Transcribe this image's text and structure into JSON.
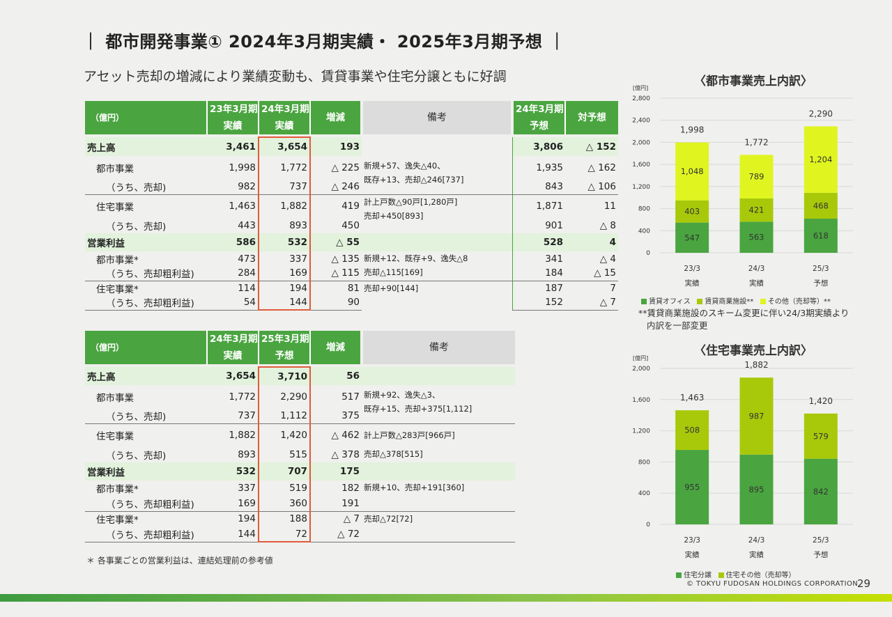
{
  "title": "｜ 都市開発事業① 2024年3月期実績・ 2025年3月期予想 ｜",
  "subtitle": "アセット売却の増減により業績変動も、賃貸事業や住宅分譲ともに好調",
  "table1": {
    "headers": {
      "unit": "（億円）",
      "c1a": "23年3月期",
      "c1b": "実績",
      "c2a": "24年3月期",
      "c2b": "実績",
      "c3": "増減",
      "note": "備考",
      "c4a": "24年3月期",
      "c4b": "予想",
      "c5": "対予想"
    },
    "rows": [
      {
        "label": "売上高",
        "v1": "3,461",
        "v2": "3,654",
        "v3": "193",
        "v4": "3,806",
        "v5": "△ 152"
      },
      {
        "label": "都市事業",
        "v1": "1,998",
        "v2": "1,772",
        "v3": "△ 225",
        "v4": "1,935",
        "v5": "△ 162"
      },
      {
        "label": "（うち、売却)",
        "v1": "982",
        "v2": "737",
        "v3": "△ 246",
        "v4": "843",
        "v5": "△ 106"
      },
      {
        "label": "住宅事業",
        "v1": "1,463",
        "v2": "1,882",
        "v3": "419",
        "v4": "1,871",
        "v5": "11"
      },
      {
        "label": "（うち、売却)",
        "v1": "443",
        "v2": "893",
        "v3": "450",
        "v4": "901",
        "v5": "△ 8"
      },
      {
        "label": "営業利益",
        "v1": "586",
        "v2": "532",
        "v3": "△ 55",
        "v4": "528",
        "v5": "4"
      },
      {
        "label": "都市事業*",
        "v1": "473",
        "v2": "337",
        "v3": "△ 135",
        "v4": "341",
        "v5": "△ 4"
      },
      {
        "label": "（うち、売却粗利益)",
        "v1": "284",
        "v2": "169",
        "v3": "△ 115",
        "v4": "184",
        "v5": "△ 15"
      },
      {
        "label": "住宅事業*",
        "v1": "114",
        "v2": "194",
        "v3": "81",
        "v4": "187",
        "v5": "7"
      },
      {
        "label": "（うち、売却粗利益)",
        "v1": "54",
        "v2": "144",
        "v3": "90",
        "v4": "152",
        "v5": "△ 7"
      }
    ],
    "notes": {
      "urban_line1": "新規+57、逸失△40、",
      "urban_line2": "既存+13、売却△246[737]",
      "housing_line1": "計上戸数△90戸[1,280戸]",
      "housing_line2": "売却+450[893]",
      "op_urban_line1": "新規+12、既存+9、逸失△8",
      "op_urban_line2": "売却△115[169]",
      "op_housing": "売却+90[144]"
    }
  },
  "table2": {
    "headers": {
      "unit": "（億円）",
      "c1a": "24年3月期",
      "c1b": "実績",
      "c2a": "25年3月期",
      "c2b": "予想",
      "c3": "増減",
      "note": "備考"
    },
    "rows": [
      {
        "label": "売上高",
        "v1": "3,654",
        "v2": "3,710",
        "v3": "56"
      },
      {
        "label": "都市事業",
        "v1": "1,772",
        "v2": "2,290",
        "v3": "517"
      },
      {
        "label": "（うち、売却)",
        "v1": "737",
        "v2": "1,112",
        "v3": "375"
      },
      {
        "label": "住宅事業",
        "v1": "1,882",
        "v2": "1,420",
        "v3": "△ 462"
      },
      {
        "label": "（うち、売却)",
        "v1": "893",
        "v2": "515",
        "v3": "△ 378"
      },
      {
        "label": "営業利益",
        "v1": "532",
        "v2": "707",
        "v3": "175"
      },
      {
        "label": "都市事業*",
        "v1": "337",
        "v2": "519",
        "v3": "182"
      },
      {
        "label": "（うち、売却粗利益)",
        "v1": "169",
        "v2": "360",
        "v3": "191"
      },
      {
        "label": "住宅事業*",
        "v1": "194",
        "v2": "188",
        "v3": "△ 7"
      },
      {
        "label": "（うち、売却粗利益)",
        "v1": "144",
        "v2": "72",
        "v3": "△ 72"
      }
    ],
    "notes": {
      "urban_line1": "新規+92、逸失△3、",
      "urban_line2": "既存+15、売却+375[1,112]",
      "housing_line1": "計上戸数△283戸[966戸]",
      "housing_line2": "売却△378[515]",
      "op_urban": "新規+10、売却+191[360]",
      "op_housing": "売却△72[72]"
    }
  },
  "footnote": "＊ 各事業ごとの営業利益は、連結処理前の参考値",
  "chart_note_line1": "**賃貸商業施設のスキーム変更に伴い24/3期実績より",
  "chart_note_line2": "内訳を一部変更",
  "copyright": "© TOKYU FUDOSAN HOLDINGS CORPORATION",
  "page_number": "29",
  "colors": {
    "green_dark": "#4aa540",
    "green_mid": "#a8c90a",
    "yellow_green": "#e0f520",
    "highlight": "#e05a3a"
  },
  "chart_data": [
    {
      "type": "bar",
      "stacked": true,
      "title": "〈都市事業売上内訳〉",
      "unit_label": "[億円]",
      "categories": [
        "23/3",
        "24/3",
        "25/3"
      ],
      "category_sublabels": [
        "実績",
        "実績",
        "予想"
      ],
      "ylim": [
        0,
        2800
      ],
      "yticks": [
        0,
        400,
        800,
        1200,
        1600,
        2000,
        2400,
        2800
      ],
      "series": [
        {
          "name": "賃貸オフィス",
          "values": [
            547,
            563,
            618
          ],
          "color": "#4aa540"
        },
        {
          "name": "賃貸商業施設**",
          "values": [
            403,
            421,
            468
          ],
          "color": "#a8c90a"
        },
        {
          "name": "その他（売却等）**",
          "values": [
            1048,
            789,
            1204
          ],
          "color": "#e0f520"
        }
      ],
      "totals": [
        "1,998",
        "1,772",
        "2,290"
      ],
      "legend_position": "bottom"
    },
    {
      "type": "bar",
      "stacked": true,
      "title": "〈住宅事業売上内訳〉",
      "unit_label": "[億円]",
      "categories": [
        "23/3",
        "24/3",
        "25/3"
      ],
      "category_sublabels": [
        "実績",
        "実績",
        "予想"
      ],
      "ylim": [
        0,
        2000
      ],
      "yticks": [
        0,
        400,
        800,
        1200,
        1600,
        2000
      ],
      "series": [
        {
          "name": "住宅分譲",
          "values": [
            955,
            895,
            842
          ],
          "color": "#4aa540"
        },
        {
          "name": "住宅その他（売却等）",
          "values": [
            508,
            987,
            579
          ],
          "color": "#a8c90a"
        }
      ],
      "totals": [
        "1,463",
        "1,882",
        "1,420"
      ],
      "legend_position": "bottom"
    }
  ]
}
